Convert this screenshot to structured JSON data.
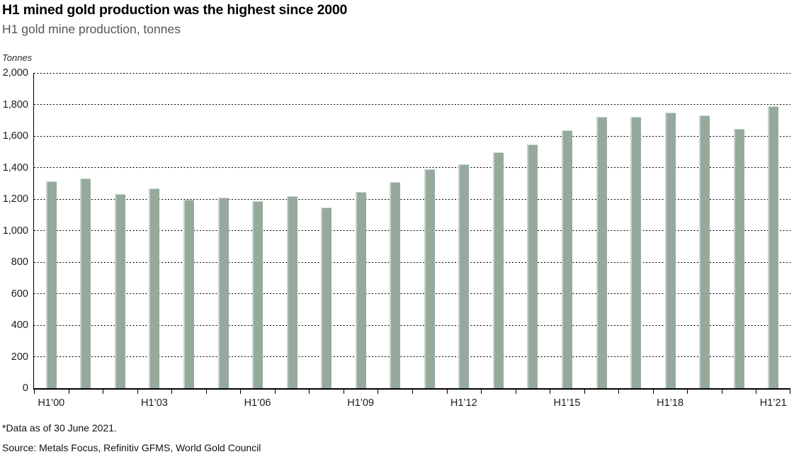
{
  "header": {
    "title": "H1 mined gold production was the highest since 2000",
    "subtitle": "H1 gold mine production, tonnes"
  },
  "chart_data": {
    "type": "bar",
    "title": "H1 mined gold production was the highest since 2000",
    "subtitle": "H1 gold mine production, tonnes",
    "unit_label": "Tonnes",
    "categories": [
      "H1’00",
      "H1’01",
      "H1’02",
      "H1’03",
      "H1’04",
      "H1’05",
      "H1’06",
      "H1’07",
      "H1’08",
      "H1’09",
      "H1’10",
      "H1’11",
      "H1’12",
      "H1’13",
      "H1’14",
      "H1’15",
      "H1’16",
      "H1’17",
      "H1’18",
      "H1’19",
      "H1’20",
      "H1’21"
    ],
    "values": [
      1310,
      1325,
      1225,
      1265,
      1190,
      1205,
      1180,
      1215,
      1140,
      1240,
      1305,
      1385,
      1415,
      1490,
      1540,
      1630,
      1715,
      1715,
      1745,
      1725,
      1640,
      1785
    ],
    "x_tick_labels_shown": [
      "H1’00",
      "H1’03",
      "H1’06",
      "H1’09",
      "H1’12",
      "H1’15",
      "H1’18",
      "H1’21"
    ],
    "xlabel": "",
    "ylabel": "Tonnes",
    "ylim": [
      0,
      2000
    ],
    "ytick_step": 200,
    "grid": "horizontal-dotted",
    "legend": "none",
    "bar_color": "#95aa9c",
    "bar_edge_color": "#c9d4ca"
  },
  "footer": {
    "footnote": "*Data as of 30 June 2021.",
    "source": "Source: Metals Focus, Refinitiv GFMS, World Gold Council"
  }
}
